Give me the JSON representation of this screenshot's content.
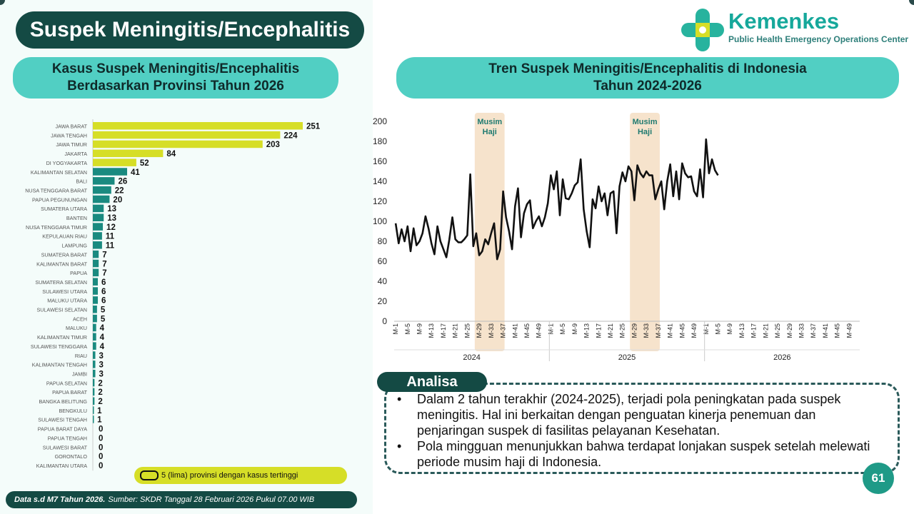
{
  "header": {
    "title": "Suspek Meningitis/Encephalitis",
    "logo_name": "Kemenkes",
    "logo_sub": "Public Health Emergency Operations Center"
  },
  "left_panel": {
    "title_line1": "Kasus Suspek Meningitis/Encephalitis",
    "title_line2": "Berdasarkan Provinsi Tahun 2026",
    "legend": "5 (lima) provinsi dengan kasus tertinggi"
  },
  "right_panel": {
    "title_line1": "Tren Suspek Meningitis/Encephalitis di Indonesia",
    "title_line2": "Tahun 2024-2026"
  },
  "colors": {
    "highlight": "#d6de27",
    "normal": "#1a8a80",
    "band": "#f6e3cc",
    "line": "#111111"
  },
  "chart_data": [
    {
      "type": "bar",
      "orientation": "horizontal",
      "categories": [
        "JAWA BARAT",
        "JAWA TENGAH",
        "JAWA TIMUR",
        "JAKARTA",
        "DI YOGYAKARTA",
        "KALIMANTAN SELATAN",
        "BALI",
        "NUSA TENGGARA BARAT",
        "PAPUA PEGUNUNGAN",
        "SUMATERA UTARA",
        "BANTEN",
        "NUSA TENGGARA TIMUR",
        "KEPULAUAN RIAU",
        "LAMPUNG",
        "SUMATERA BARAT",
        "KALIMANTAN BARAT",
        "PAPUA",
        "SUMATERA SELATAN",
        "SULAWESI UTARA",
        "MALUKU UTARA",
        "SULAWESI SELATAN",
        "ACEH",
        "MALUKU",
        "KALIMANTAN TIMUR",
        "SULAWESI TENGGARA",
        "RIAU",
        "KALIMANTAN TENGAH",
        "JAMBI",
        "PAPUA SELATAN",
        "PAPUA BARAT",
        "BANGKA BELITUNG",
        "BENGKULU",
        "SULAWESI TENGAH",
        "PAPUA BARAT DAYA",
        "PAPUA TENGAH",
        "SULAWESI BARAT",
        "GORONTALO",
        "KALIMANTAN UTARA"
      ],
      "values": [
        251,
        224,
        203,
        84,
        52,
        41,
        26,
        22,
        20,
        13,
        13,
        12,
        11,
        11,
        7,
        7,
        7,
        6,
        6,
        6,
        5,
        5,
        4,
        4,
        4,
        3,
        3,
        3,
        2,
        2,
        2,
        1,
        1,
        0,
        0,
        0,
        0,
        0
      ],
      "highlight_top": 5
    },
    {
      "type": "line",
      "ylim": [
        0,
        200
      ],
      "yticks": [
        0,
        20,
        40,
        60,
        80,
        100,
        120,
        140,
        160,
        180,
        200
      ],
      "week_ticks": [
        "M-1",
        "M-5",
        "M-9",
        "M-13",
        "M-17",
        "M-21",
        "M-25",
        "M-29",
        "M-33",
        "M-37",
        "M-41",
        "M-45",
        "M-49"
      ],
      "years": [
        "2024",
        "2025",
        "2026"
      ],
      "weeks_per_year": 52,
      "bands": [
        {
          "label_line1": "Musim",
          "label_line2": "Haji",
          "start_week": 27,
          "end_week": 36
        },
        {
          "label_line1": "Musim",
          "label_line2": "Haji",
          "start_week": 79,
          "end_week": 88
        }
      ],
      "values": [
        98,
        78,
        92,
        80,
        95,
        70,
        93,
        76,
        80,
        88,
        105,
        93,
        78,
        67,
        95,
        80,
        72,
        64,
        82,
        104,
        82,
        79,
        79,
        82,
        86,
        147,
        75,
        88,
        66,
        70,
        82,
        77,
        88,
        98,
        62,
        72,
        130,
        104,
        90,
        72,
        115,
        133,
        84,
        108,
        117,
        121,
        93,
        100,
        105,
        95,
        104,
        118,
        146,
        132,
        150,
        106,
        142,
        123,
        122,
        128,
        136,
        139,
        162,
        112,
        90,
        74,
        122,
        113,
        135,
        120,
        128,
        106,
        128,
        130,
        88,
        135,
        149,
        140,
        155,
        150,
        121,
        156,
        148,
        144,
        150,
        146,
        146,
        122,
        132,
        140,
        112,
        140,
        157,
        125,
        150,
        122,
        158,
        148,
        144,
        145,
        130,
        125,
        152,
        124,
        182,
        148,
        162,
        151,
        146
      ]
    }
  ],
  "analisa": {
    "tag": "Analisa",
    "items": [
      "Dalam 2 tahun terakhir (2024-2025), terjadi pola peningkatan pada suspek meningitis. Hal ini berkaitan dengan penguatan kinerja penemuan dan penjaringan suspek di fasilitas pelayanan Kesehatan.",
      "Pola mingguan menunjukkan bahwa terdapat lonjakan suspek setelah melewati periode musim haji di Indonesia."
    ]
  },
  "footer": {
    "bold": "Data s.d M7 Tahun 2026.",
    "text": "Sumber: SKDR Tanggal 28 Februari 2026 Pukul 07.00 WIB"
  },
  "page_number": "61"
}
